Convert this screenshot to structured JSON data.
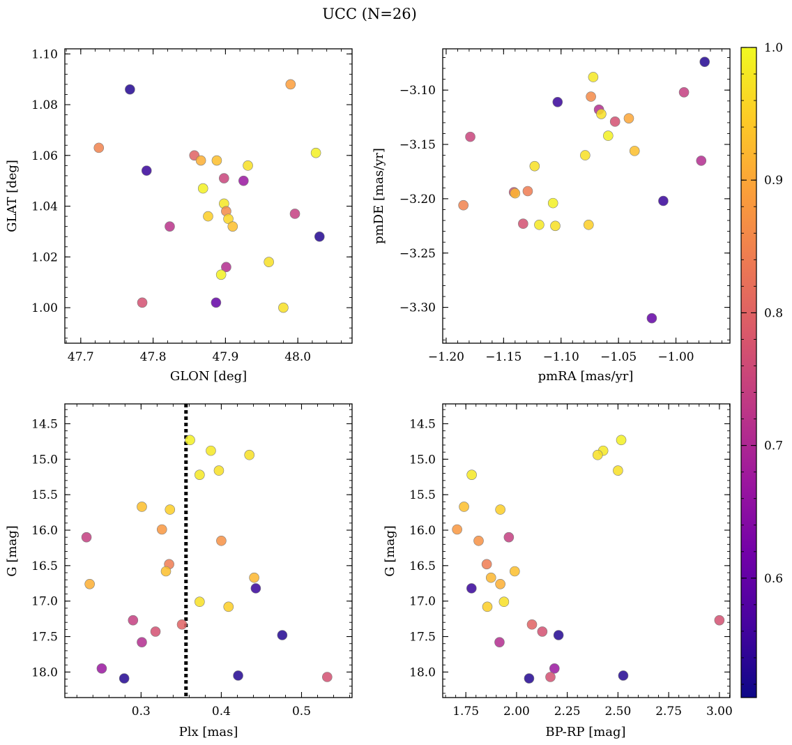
{
  "figure": {
    "title": "UCC (N=26)"
  },
  "colorbar": {
    "min": 0.51,
    "max": 1.0,
    "ticks": [
      0.6,
      0.7,
      0.8,
      0.9,
      1.0
    ],
    "tick_labels": [
      "0.6",
      "0.7",
      "0.8",
      "0.9",
      "1.0"
    ],
    "colormap": "plasma",
    "stops": [
      "#0d0887",
      "#46039f",
      "#7201a8",
      "#9c179e",
      "#bd3786",
      "#d8576b",
      "#ed7953",
      "#fb9f3a",
      "#fdca26",
      "#f0f921"
    ]
  },
  "chart_data": [
    {
      "type": "scatter",
      "xlabel": "GLON [deg]",
      "ylabel": "GLAT [deg]",
      "xlim": [
        47.678,
        48.075
      ],
      "ylim": [
        0.986,
        1.102
      ],
      "xticks": [
        47.7,
        47.8,
        47.9,
        48.0
      ],
      "xtick_labels": [
        "47.7",
        "47.8",
        "47.9",
        "48.0"
      ],
      "yticks": [
        1.0,
        1.02,
        1.04,
        1.06,
        1.08,
        1.1
      ],
      "ytick_labels": [
        "1.00",
        "1.02",
        "1.04",
        "1.06",
        "1.08",
        "1.10"
      ],
      "x": [
        47.768,
        47.99,
        47.725,
        47.791,
        47.857,
        47.866,
        47.888,
        47.931,
        48.025,
        47.898,
        47.925,
        47.869,
        47.898,
        47.876,
        47.901,
        47.996,
        47.904,
        47.91,
        47.823,
        48.03,
        47.901,
        47.96,
        47.894,
        47.785,
        47.887,
        47.98
      ],
      "y": [
        1.086,
        1.088,
        1.063,
        1.054,
        1.06,
        1.058,
        1.058,
        1.056,
        1.061,
        1.051,
        1.05,
        1.047,
        1.041,
        1.036,
        1.038,
        1.037,
        1.035,
        1.032,
        1.032,
        1.028,
        1.016,
        1.018,
        1.013,
        1.002,
        1.002,
        1.0
      ],
      "c": [
        0.53,
        0.89,
        0.85,
        0.55,
        0.8,
        0.91,
        0.93,
        0.97,
        0.99,
        0.75,
        0.67,
        0.99,
        0.98,
        0.95,
        0.86,
        0.74,
        0.96,
        0.93,
        0.72,
        0.53,
        0.71,
        0.97,
        0.99,
        0.77,
        0.6,
        0.97
      ]
    },
    {
      "type": "scatter",
      "xlabel": "pmRA [mas/yr]",
      "ylabel": "pmDE [mas/yr]",
      "xlim": [
        -1.203,
        -0.953
      ],
      "ylim": [
        -3.333,
        -3.062
      ],
      "xticks": [
        -1.2,
        -1.15,
        -1.1,
        -1.05,
        -1.0
      ],
      "xtick_labels": [
        "−1.20",
        "−1.15",
        "−1.10",
        "−1.05",
        "−1.00"
      ],
      "yticks": [
        -3.3,
        -3.25,
        -3.2,
        -3.15,
        -3.1
      ],
      "ytick_labels": [
        "−3.30",
        "−3.25",
        "−3.20",
        "−3.15",
        "−3.10"
      ],
      "x": [
        -0.975,
        -1.072,
        -1.103,
        -0.993,
        -1.074,
        -1.067,
        -1.065,
        -1.053,
        -1.041,
        -1.179,
        -1.059,
        -1.036,
        -1.079,
        -1.123,
        -0.978,
        -1.129,
        -1.141,
        -1.14,
        -1.185,
        -1.011,
        -1.107,
        -1.133,
        -1.119,
        -1.105,
        -1.076,
        -1.021
      ],
      "y": [
        -3.074,
        -3.088,
        -3.111,
        -3.102,
        -3.106,
        -3.118,
        -3.122,
        -3.129,
        -3.126,
        -3.143,
        -3.142,
        -3.156,
        -3.16,
        -3.17,
        -3.165,
        -3.193,
        -3.194,
        -3.195,
        -3.206,
        -3.202,
        -3.204,
        -3.223,
        -3.224,
        -3.225,
        -3.224,
        -3.31
      ],
      "c": [
        0.53,
        0.98,
        0.55,
        0.74,
        0.86,
        0.71,
        0.97,
        0.77,
        0.9,
        0.75,
        0.99,
        0.93,
        0.97,
        0.97,
        0.71,
        0.84,
        0.77,
        0.92,
        0.85,
        0.55,
        0.99,
        0.77,
        0.98,
        0.97,
        0.95,
        0.6
      ]
    },
    {
      "type": "scatter",
      "xlabel": "Plx [mas]",
      "ylabel": "G [mag]",
      "xlim": [
        0.205,
        0.563
      ],
      "ylim": [
        18.36,
        14.22
      ],
      "y_inverted": true,
      "xticks": [
        0.3,
        0.4,
        0.5
      ],
      "xtick_labels": [
        "0.3",
        "0.4",
        "0.5"
      ],
      "yticks": [
        14.5,
        15.0,
        15.5,
        16.0,
        16.5,
        17.0,
        17.5,
        18.0
      ],
      "ytick_labels": [
        "14.5",
        "15.0",
        "15.5",
        "16.0",
        "16.5",
        "17.0",
        "17.5",
        "18.0"
      ],
      "vline": {
        "x": 0.356,
        "style": "dotted"
      },
      "x": [
        0.361,
        0.387,
        0.435,
        0.373,
        0.397,
        0.301,
        0.336,
        0.326,
        0.232,
        0.4,
        0.335,
        0.236,
        0.331,
        0.441,
        0.443,
        0.373,
        0.409,
        0.29,
        0.318,
        0.351,
        0.301,
        0.476,
        0.251,
        0.279,
        0.421,
        0.532
      ],
      "y": [
        14.73,
        14.88,
        14.94,
        15.22,
        15.16,
        15.67,
        15.71,
        15.99,
        16.1,
        16.15,
        16.48,
        16.76,
        16.58,
        16.67,
        16.82,
        17.01,
        17.08,
        17.27,
        17.43,
        17.33,
        17.58,
        17.48,
        17.95,
        18.09,
        18.05,
        18.07
      ],
      "c": [
        0.99,
        0.98,
        0.97,
        0.98,
        0.97,
        0.93,
        0.95,
        0.88,
        0.74,
        0.87,
        0.84,
        0.91,
        0.93,
        0.92,
        0.55,
        0.97,
        0.95,
        0.74,
        0.77,
        0.8,
        0.71,
        0.53,
        0.67,
        0.53,
        0.53,
        0.77
      ]
    },
    {
      "type": "scatter",
      "xlabel": "BP-RP [mag]",
      "ylabel": "G [mag]",
      "xlim": [
        1.636,
        3.052
      ],
      "ylim": [
        18.36,
        14.22
      ],
      "y_inverted": true,
      "xticks": [
        1.75,
        2.0,
        2.25,
        2.5,
        2.75,
        3.0
      ],
      "xtick_labels": [
        "1.75",
        "2.00",
        "2.25",
        "2.50",
        "2.75",
        "3.00"
      ],
      "yticks": [
        14.5,
        15.0,
        15.5,
        16.0,
        16.5,
        17.0,
        17.5,
        18.0
      ],
      "ytick_labels": [
        "14.5",
        "15.0",
        "15.5",
        "16.0",
        "16.5",
        "17.0",
        "17.5",
        "18.0"
      ],
      "x": [
        2.516,
        2.427,
        2.4,
        2.5,
        1.779,
        1.741,
        1.92,
        1.707,
        1.962,
        1.813,
        1.853,
        1.991,
        1.874,
        1.92,
        1.778,
        1.938,
        1.856,
        2.076,
        2.127,
        2.207,
        3.0,
        1.916,
        2.187,
        2.062,
        2.526,
        2.167
      ],
      "y": [
        14.73,
        14.88,
        14.94,
        15.16,
        15.22,
        15.67,
        15.71,
        15.99,
        16.1,
        16.15,
        16.48,
        16.58,
        16.67,
        16.76,
        16.82,
        17.01,
        17.08,
        17.33,
        17.43,
        17.48,
        17.27,
        17.58,
        17.95,
        18.09,
        18.05,
        18.07
      ],
      "c": [
        0.99,
        0.98,
        0.97,
        0.97,
        0.98,
        0.93,
        0.95,
        0.88,
        0.74,
        0.87,
        0.84,
        0.93,
        0.92,
        0.91,
        0.55,
        0.97,
        0.95,
        0.8,
        0.77,
        0.53,
        0.77,
        0.71,
        0.67,
        0.53,
        0.53,
        0.77
      ]
    }
  ]
}
